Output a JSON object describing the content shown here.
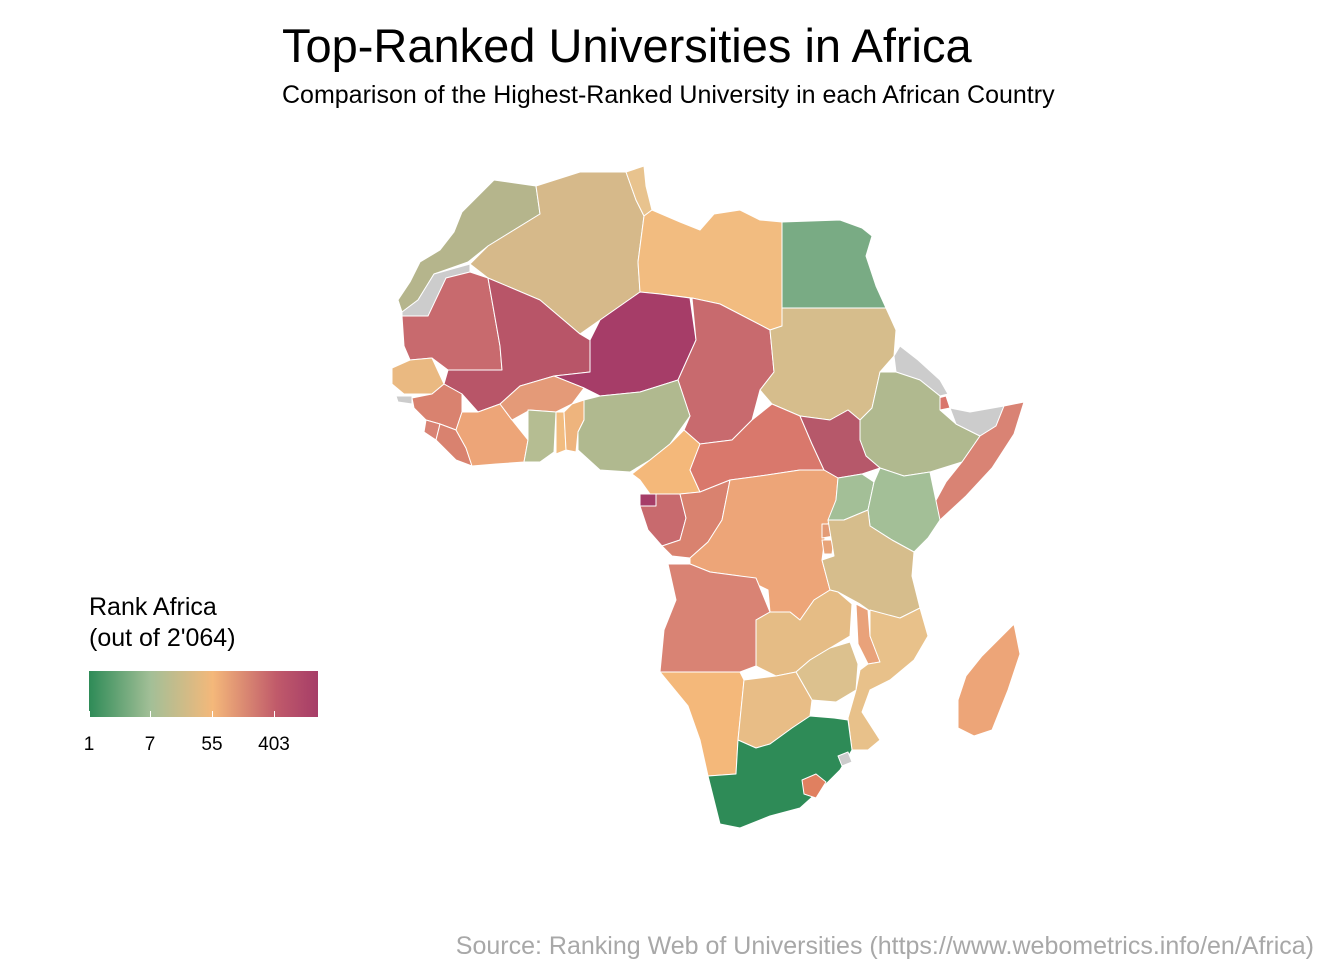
{
  "header": {
    "title": "Top-Ranked Universities in Africa",
    "subtitle": "Comparison of the Highest-Ranked University in each African Country"
  },
  "legend": {
    "title_line1": "Rank Africa",
    "title_line2": "(out of 2'064)",
    "ticks": [
      "1",
      "7",
      "55",
      "403"
    ],
    "colors": {
      "rank_1": "#2e8b57",
      "rank_7": "#a3bf97",
      "rank_55": "#f4b87a",
      "rank_403": "#c05a6a",
      "rank_max": "#a63d68",
      "no_data": "#cccccc"
    }
  },
  "source": "Source: Ranking Web of Universities (https://www.webometrics.info/en/Africa)"
}
